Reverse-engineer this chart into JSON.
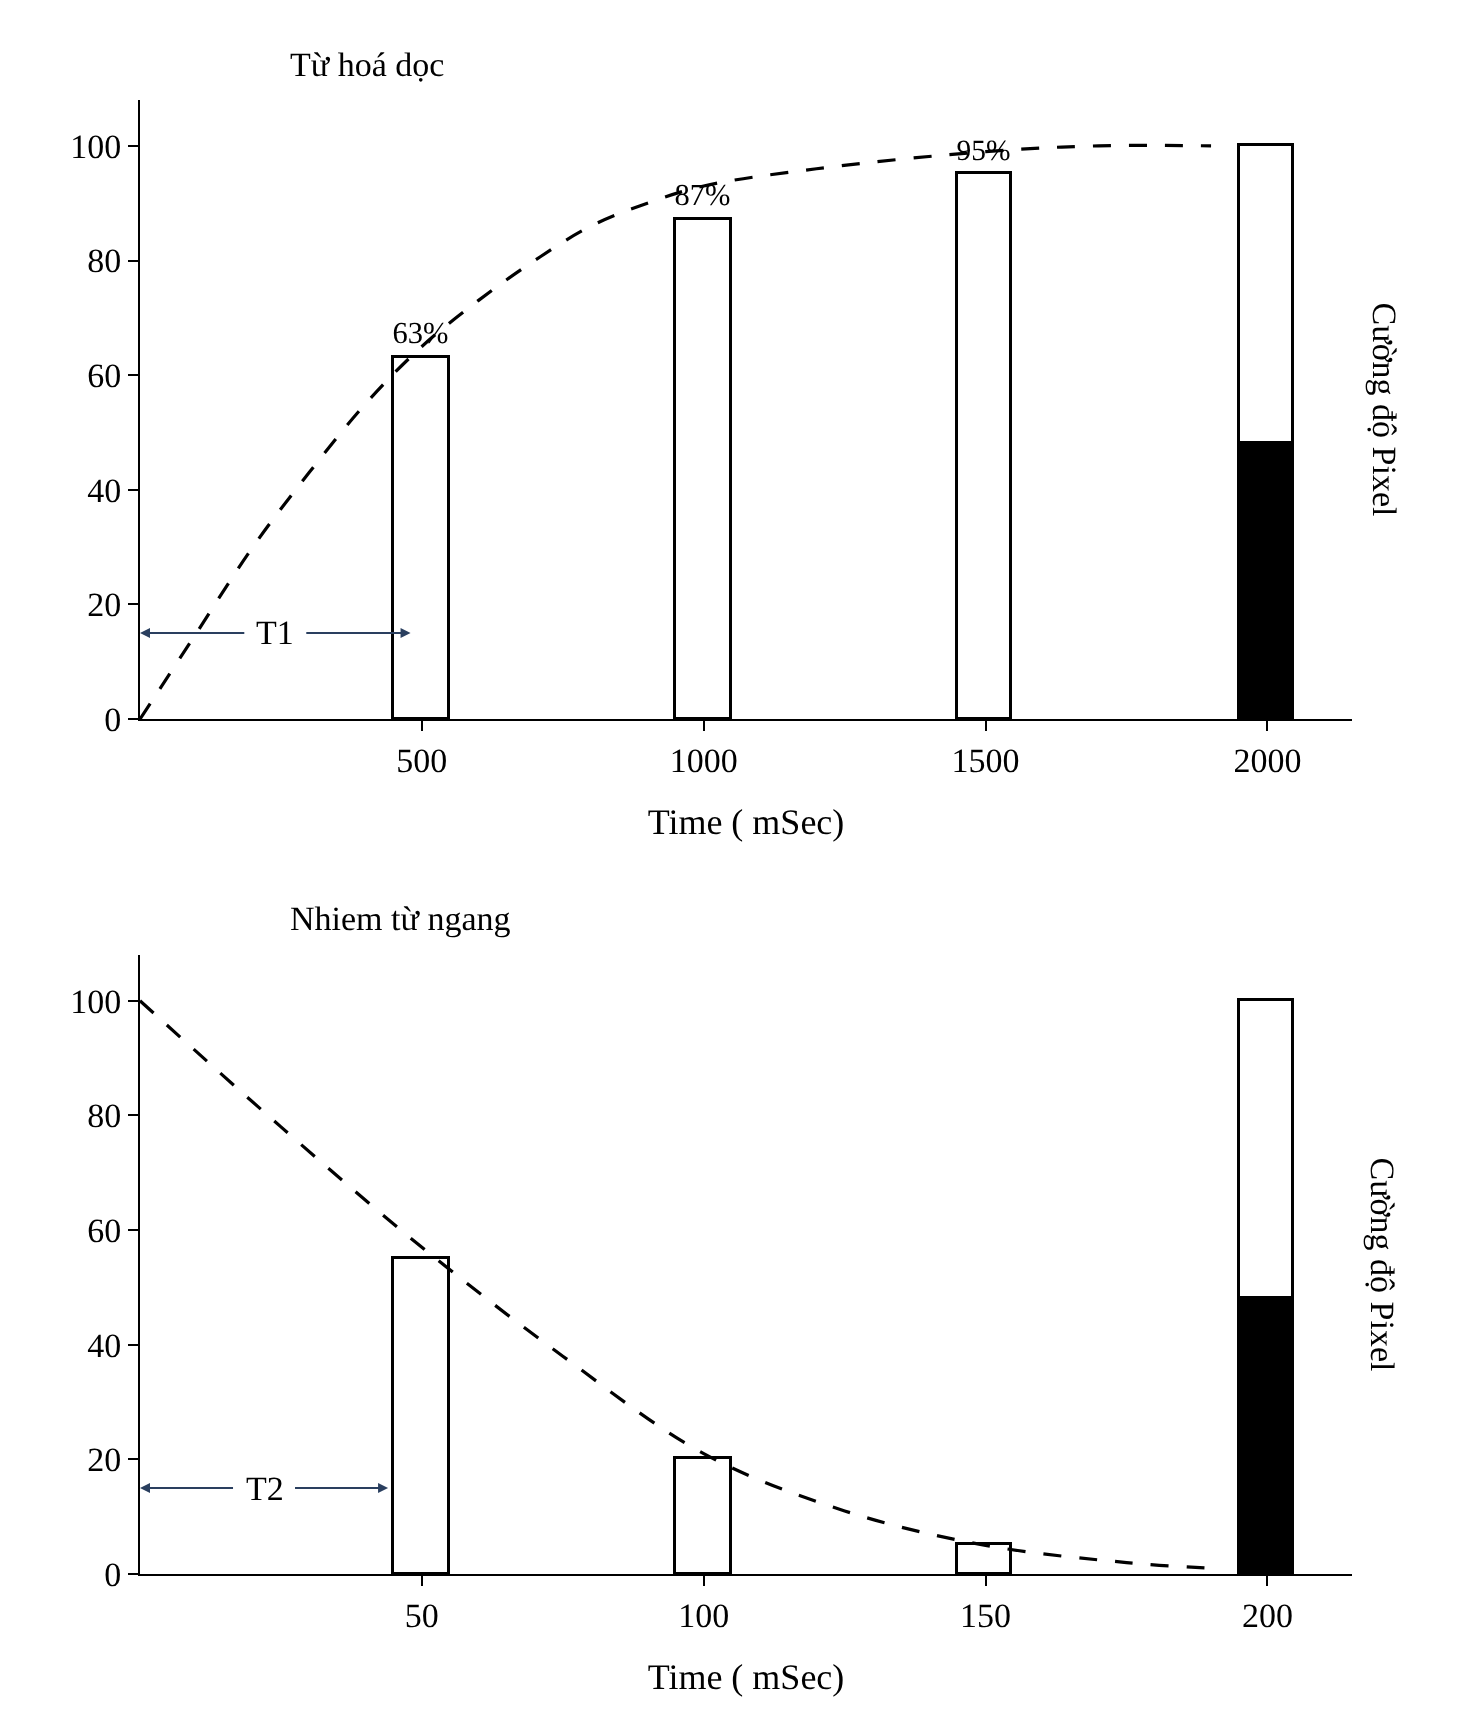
{
  "chart_data": [
    {
      "type": "line",
      "title": "Từ hoá dọc",
      "xlabel": "Time ( mSec)",
      "x": [
        500,
        1000,
        1500,
        2000
      ],
      "xlim": [
        0,
        2150
      ],
      "ylim": [
        0,
        108
      ],
      "xticks": [
        500,
        1000,
        1500,
        2000
      ],
      "yticks": [
        0,
        20,
        40,
        60,
        80,
        100
      ],
      "stacked": true,
      "marker": "none",
      "annotations": [
        {
          "text": "T1",
          "x": 240,
          "y": 15
        },
        "Cường độ Pixel"
      ],
      "series": [
        {
          "line_style": "dashed",
          "color": "#000000",
          "x": [
            0,
            100,
            200,
            300,
            400,
            500,
            600,
            700,
            800,
            900,
            1000,
            1200,
            1500,
            1700,
            1900
          ],
          "values": [
            0,
            15,
            30,
            43,
            55,
            65,
            73,
            80,
            86,
            90,
            93,
            96,
            99,
            100,
            100
          ]
        },
        {
          "type": "bar",
          "colors": [
            "#ffffff",
            "#ffffff",
            "#ffffff",
            "#000000"
          ],
          "values": [
            63,
            87,
            95,
            48
          ],
          "value_labels": [
            "63%",
            "87%",
            "95%",
            null
          ]
        },
        {
          "type": "bar",
          "color": "#ffffff",
          "values": [
            null,
            null,
            null,
            52
          ]
        }
      ]
    },
    {
      "type": "line",
      "title": "Nhiem từ ngang",
      "xlabel": "Time ( mSec)",
      "x": [
        50,
        100,
        150,
        200
      ],
      "xlim": [
        0,
        215
      ],
      "ylim": [
        0,
        108
      ],
      "xticks": [
        50,
        100,
        150,
        200
      ],
      "yticks": [
        0,
        20,
        40,
        60,
        80,
        100
      ],
      "stacked": true,
      "marker": "none",
      "annotations": [
        {
          "text": "T2",
          "x": 22,
          "y": 15
        },
        "Cường độ Pixel"
      ],
      "series": [
        {
          "line_style": "dashed",
          "color": "#000000",
          "x": [
            0,
            25,
            50,
            75,
            100,
            125,
            150,
            175,
            190
          ],
          "values": [
            100,
            78,
            57,
            38,
            21,
            11,
            5,
            2,
            1
          ]
        },
        {
          "type": "bar",
          "colors": [
            "#ffffff",
            "#ffffff",
            "#ffffff",
            "#000000"
          ],
          "values": [
            55,
            20,
            5,
            48
          ]
        },
        {
          "type": "bar",
          "color": "#ffffff",
          "values": [
            null,
            null,
            null,
            52
          ]
        }
      ]
    }
  ]
}
